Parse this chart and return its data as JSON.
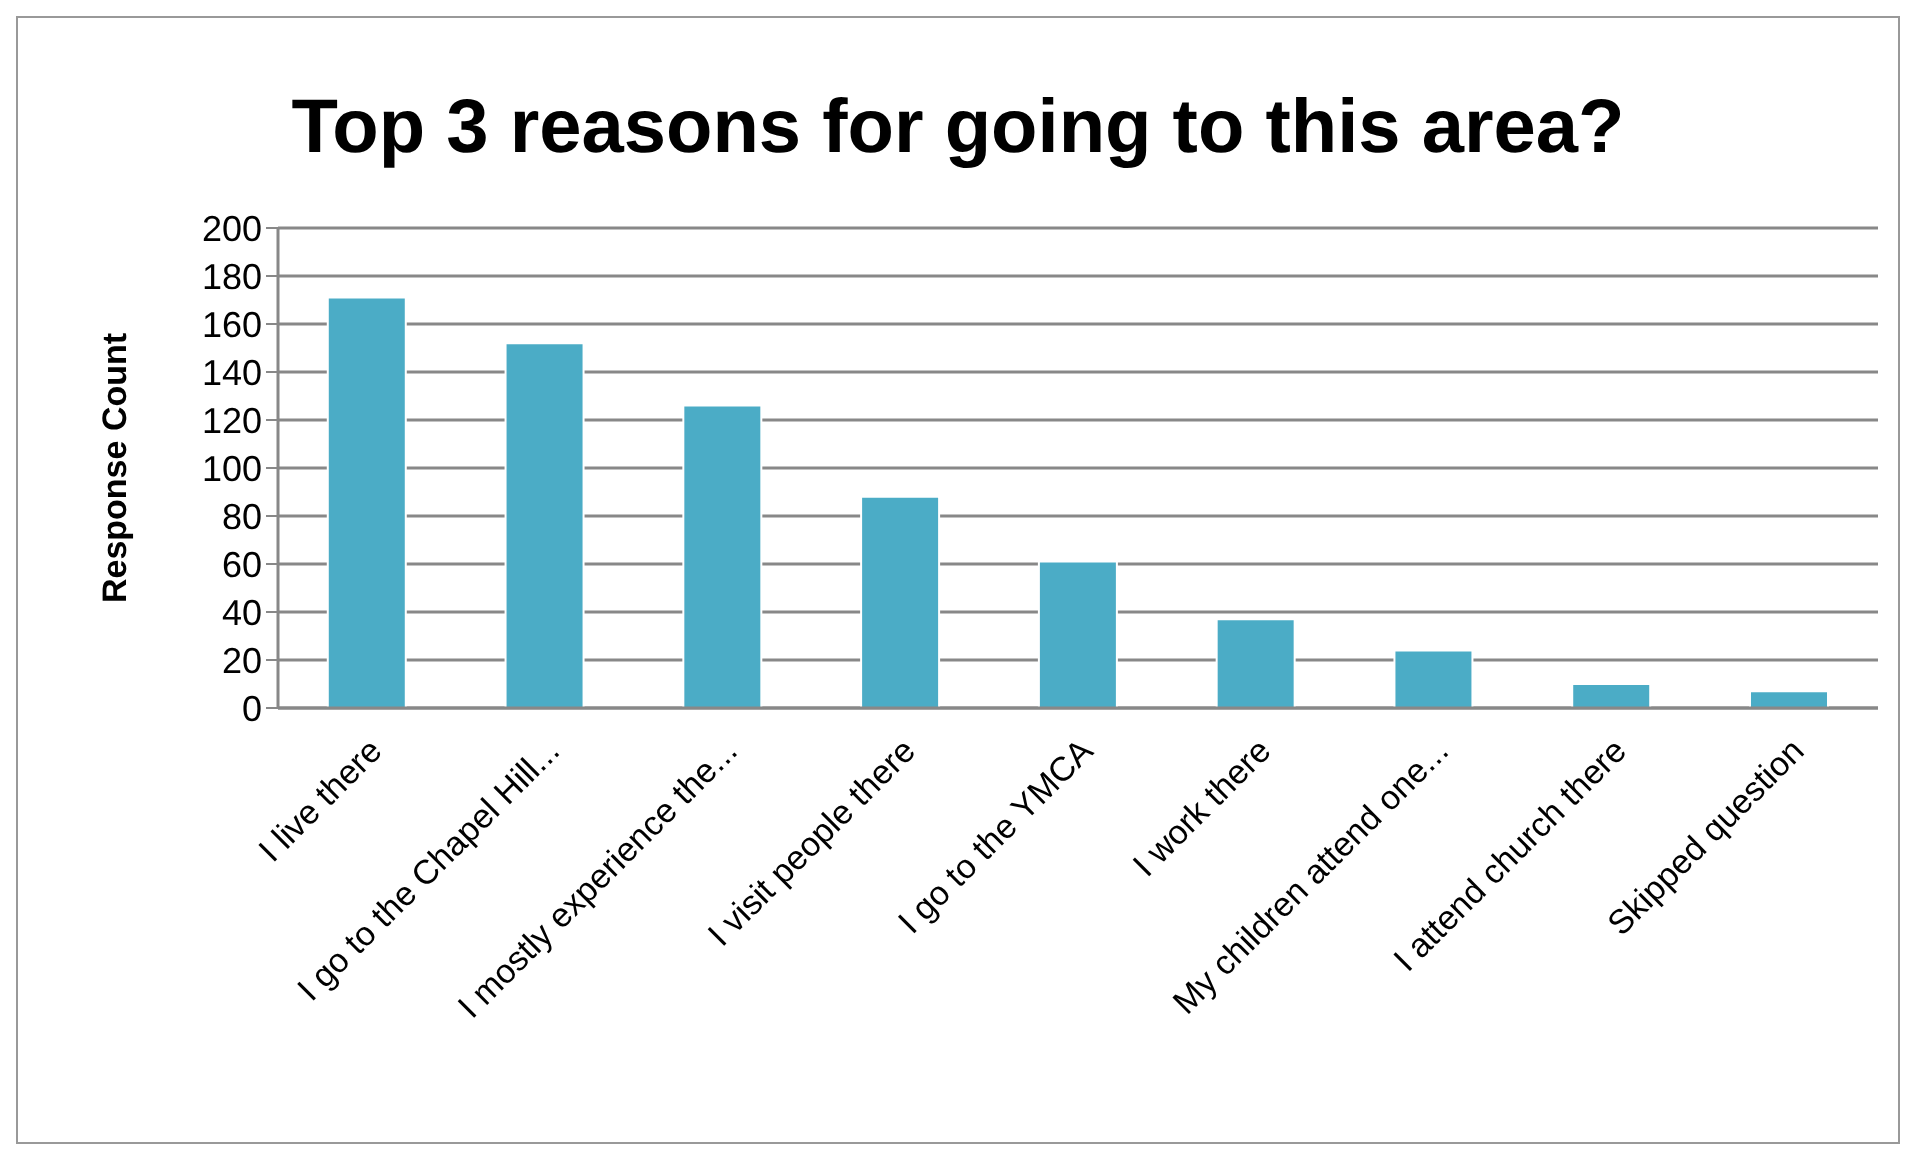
{
  "chart_data": {
    "type": "bar",
    "title": "Top 3 reasons for going to this area?",
    "ylabel": "Response Count",
    "categories": [
      "I live there",
      "I go to the Chapel Hill...",
      "I mostly experience the...",
      "I visit people there",
      "I go to the YMCA",
      "I work there",
      "My children attend one...",
      "I attend church there",
      "Skipped question"
    ],
    "values": [
      171,
      152,
      126,
      88,
      61,
      37,
      24,
      10,
      7
    ],
    "color": "#4bacc6",
    "ylim": [
      0,
      200
    ],
    "yticks": [
      0,
      20,
      40,
      60,
      80,
      100,
      120,
      140,
      160,
      180,
      200
    ],
    "grid": "y"
  }
}
